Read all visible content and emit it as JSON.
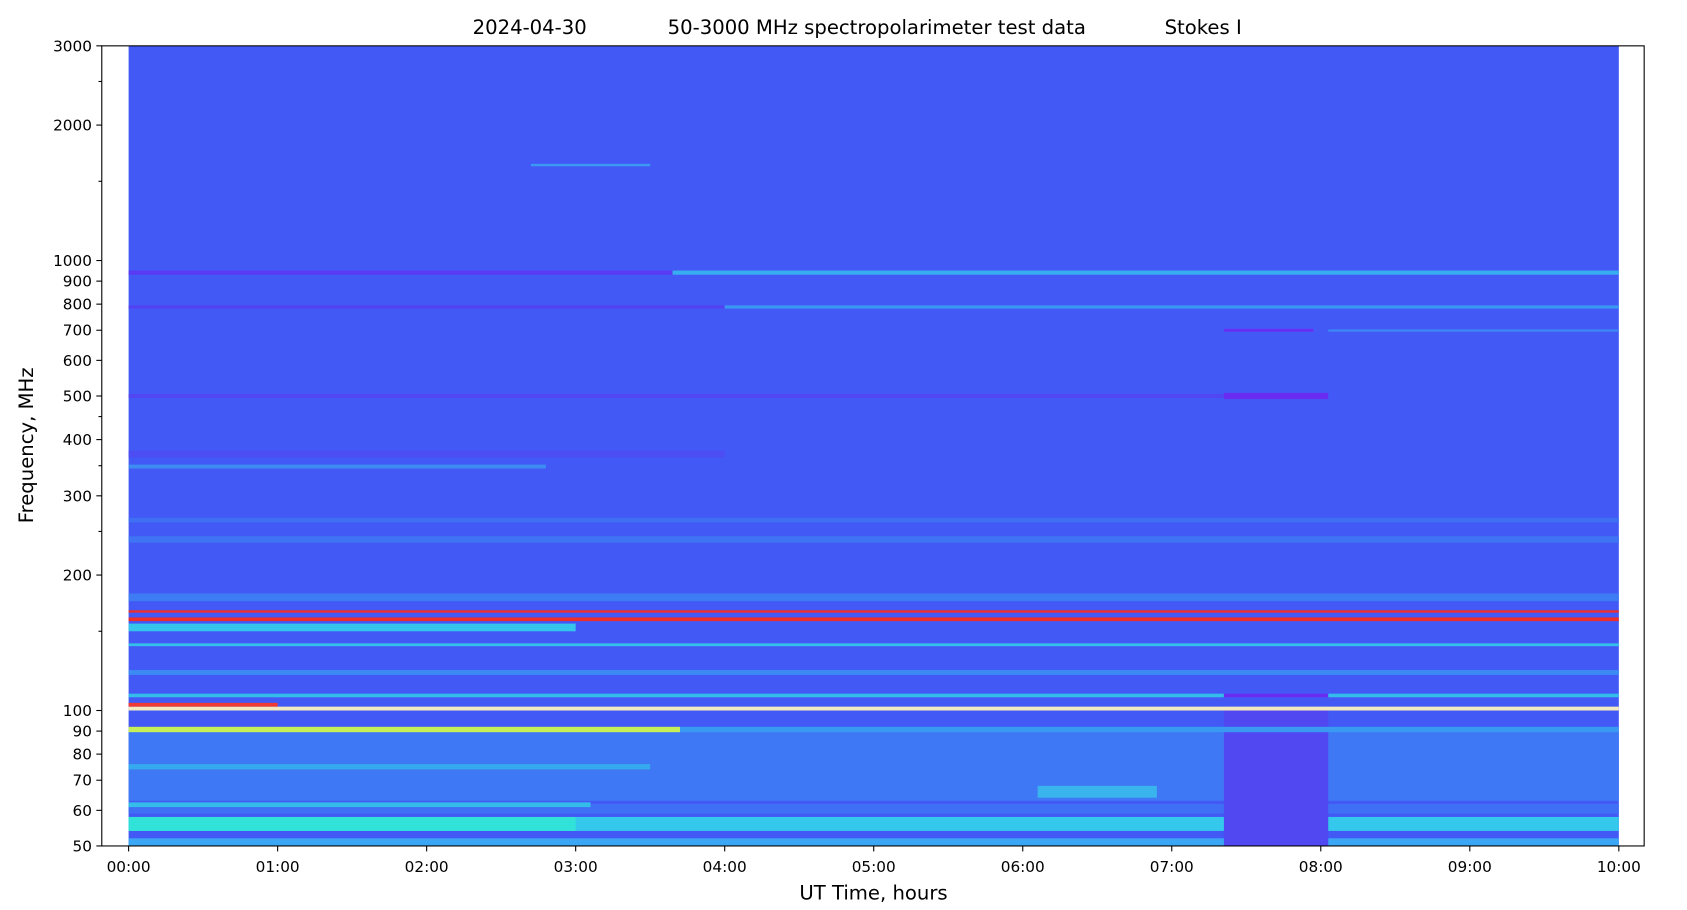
{
  "chart_data": {
    "type": "spectrogram",
    "title_parts": [
      "2024-04-30",
      "50-3000 MHz spectropolarimeter test data",
      "Stokes I"
    ],
    "x_label": "UT Time, hours",
    "y_label": "Frequency, MHz",
    "xlim": [
      -0.18,
      10.17
    ],
    "xticks": [
      {
        "value": 0,
        "label": "00:00"
      },
      {
        "value": 1,
        "label": "01:00"
      },
      {
        "value": 2,
        "label": "02:00"
      },
      {
        "value": 3,
        "label": "03:00"
      },
      {
        "value": 4,
        "label": "04:00"
      },
      {
        "value": 5,
        "label": "05:00"
      },
      {
        "value": 6,
        "label": "06:00"
      },
      {
        "value": 7,
        "label": "07:00"
      },
      {
        "value": 8,
        "label": "08:00"
      },
      {
        "value": 9,
        "label": "09:00"
      },
      {
        "value": 10,
        "label": "10:00"
      }
    ],
    "ylim": [
      50,
      3000
    ],
    "yscale": "log",
    "yticks": [
      50,
      60,
      70,
      80,
      90,
      100,
      200,
      300,
      400,
      500,
      600,
      700,
      800,
      900,
      1000,
      2000,
      3000
    ],
    "yminorticks": [
      150,
      250,
      350,
      450,
      1500,
      2500
    ],
    "extent": [
      0,
      10
    ],
    "background": "#4259f6",
    "bands": [
      {
        "freq_low": 50,
        "freq_high": 52,
        "start": 0,
        "end": 10,
        "color": "#3aa6f4"
      },
      {
        "freq_low": 54,
        "freq_high": 58,
        "start": 0,
        "end": 10,
        "color": "#34c8ec"
      },
      {
        "freq_low": 54,
        "freq_high": 58,
        "start": 0,
        "end": 3,
        "color": "#30e2d8"
      },
      {
        "freq_low": 59,
        "freq_high": 62,
        "start": 0,
        "end": 10,
        "color": "#3f6ff4"
      },
      {
        "freq_low": 61,
        "freq_high": 62.5,
        "start": 0,
        "end": 3.1,
        "color": "#34bde8"
      },
      {
        "freq_low": 63,
        "freq_high": 90,
        "start": 0,
        "end": 10,
        "color": "#3f78f4"
      },
      {
        "freq_low": 50,
        "freq_high": 100,
        "start": 7.35,
        "end": 8.05,
        "color": "#5148f2"
      },
      {
        "freq_low": 64,
        "freq_high": 68,
        "start": 6.1,
        "end": 6.9,
        "color": "#3ab4ec"
      },
      {
        "freq_low": 74,
        "freq_high": 76,
        "start": 0,
        "end": 3.5,
        "color": "#36aaee"
      },
      {
        "freq_low": 89.5,
        "freq_high": 92,
        "start": 0,
        "end": 3.7,
        "color": "#c6f058"
      },
      {
        "freq_low": 89.5,
        "freq_high": 92,
        "start": 3.7,
        "end": 10,
        "color": "#3a9af2"
      },
      {
        "freq_low": 100,
        "freq_high": 102,
        "start": 0,
        "end": 10,
        "color": "#f3eac0"
      },
      {
        "freq_low": 102,
        "freq_high": 104,
        "start": 0,
        "end": 1,
        "color": "#ef3a34"
      },
      {
        "freq_low": 107,
        "freq_high": 109,
        "start": 0,
        "end": 7.35,
        "color": "#34bcea"
      },
      {
        "freq_low": 107,
        "freq_high": 109,
        "start": 7.35,
        "end": 8.05,
        "color": "#6a2cf0"
      },
      {
        "freq_low": 107,
        "freq_high": 109,
        "start": 8.05,
        "end": 10,
        "color": "#34bcea"
      },
      {
        "freq_low": 120,
        "freq_high": 123,
        "start": 0,
        "end": 10,
        "color": "#3c8af4"
      },
      {
        "freq_low": 139,
        "freq_high": 141,
        "start": 0,
        "end": 10,
        "color": "#34c0ea"
      },
      {
        "freq_low": 150,
        "freq_high": 156,
        "start": 0,
        "end": 3,
        "color": "#36c6ec"
      },
      {
        "freq_low": 158,
        "freq_high": 161,
        "start": 0,
        "end": 10,
        "color": "#ef2e2c"
      },
      {
        "freq_low": 165,
        "freq_high": 167,
        "start": 0,
        "end": 10,
        "color": "#ef2e2c"
      },
      {
        "freq_low": 175,
        "freq_high": 182,
        "start": 0,
        "end": 10,
        "color": "#3e7cf4"
      },
      {
        "freq_low": 236,
        "freq_high": 244,
        "start": 0,
        "end": 10,
        "color": "#3f74f4"
      },
      {
        "freq_low": 262,
        "freq_high": 268,
        "start": 0,
        "end": 10,
        "color": "#3f70f4"
      },
      {
        "freq_low": 345,
        "freq_high": 352,
        "start": 0,
        "end": 2.8,
        "color": "#3c8cf2"
      },
      {
        "freq_low": 365,
        "freq_high": 378,
        "start": 0,
        "end": 4,
        "color": "#4c4ef4"
      },
      {
        "freq_low": 495,
        "freq_high": 505,
        "start": 0,
        "end": 7.35,
        "color": "#5146f2"
      },
      {
        "freq_low": 492,
        "freq_high": 508,
        "start": 7.35,
        "end": 8.05,
        "color": "#6a2cf0"
      },
      {
        "freq_low": 695,
        "freq_high": 705,
        "start": 7.35,
        "end": 7.95,
        "color": "#6a2cf0"
      },
      {
        "freq_low": 695,
        "freq_high": 703,
        "start": 8.05,
        "end": 10,
        "color": "#3c88f4"
      },
      {
        "freq_low": 782,
        "freq_high": 795,
        "start": 0,
        "end": 4,
        "color": "#5342f2"
      },
      {
        "freq_low": 782,
        "freq_high": 795,
        "start": 4,
        "end": 10,
        "color": "#3a98f2"
      },
      {
        "freq_low": 930,
        "freq_high": 950,
        "start": 0,
        "end": 3.65,
        "color": "#5a3af2"
      },
      {
        "freq_low": 930,
        "freq_high": 950,
        "start": 3.65,
        "end": 10,
        "color": "#38aef0"
      },
      {
        "freq_low": 1620,
        "freq_high": 1640,
        "start": 2.7,
        "end": 3.5,
        "color": "#3a9af2"
      }
    ]
  }
}
